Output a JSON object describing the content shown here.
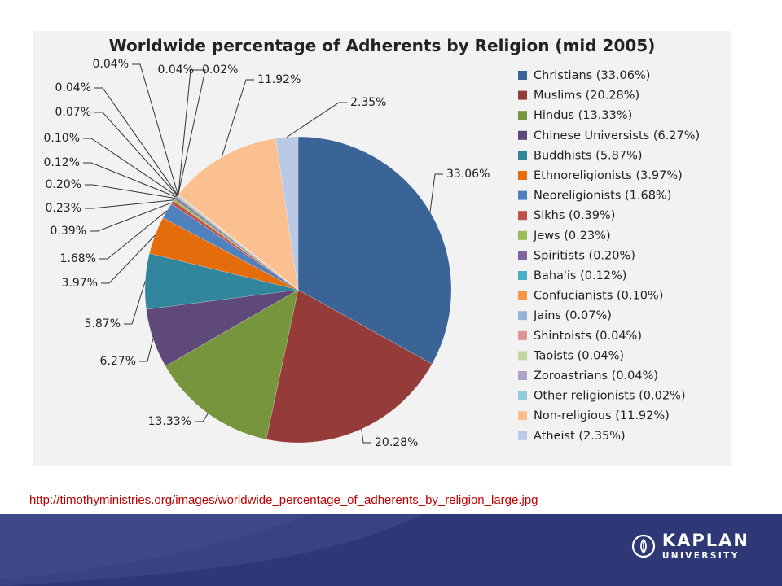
{
  "source_url": "http://timothyministries.org/images/worldwide_percentage_of_adherents_by_religion_large.jpg",
  "logo": {
    "line1": "KAPLAN",
    "line2": "UNIVERSITY"
  },
  "chart_data": {
    "type": "pie",
    "title": "Worldwide percentage of Adherents by Religion (mid 2005)",
    "legend_position": "right",
    "slices": [
      {
        "label": "Christians",
        "legend": "Christians (33.06%)",
        "value": 33.06,
        "data_label": "33.06%",
        "color": "#3a6496"
      },
      {
        "label": "Muslims",
        "legend": "Muslims (20.28%)",
        "value": 20.28,
        "data_label": "20.28%",
        "color": "#953b39"
      },
      {
        "label": "Hindus",
        "legend": "Hindus (13.33%)",
        "value": 13.33,
        "data_label": "13.33%",
        "color": "#77953d"
      },
      {
        "label": "Chinese Universists",
        "legend": "Chinese Universists (6.27%)",
        "value": 6.27,
        "data_label": "6.27%",
        "color": "#5f497a"
      },
      {
        "label": "Buddhists",
        "legend": "Buddhists (5.87%)",
        "value": 5.87,
        "data_label": "5.87%",
        "color": "#31859c"
      },
      {
        "label": "Ethnoreligionists",
        "legend": "Ethnoreligionists (3.97%)",
        "value": 3.97,
        "data_label": "3.97%",
        "color": "#e46c0a"
      },
      {
        "label": "Neoreligionists",
        "legend": "Neoreligionists (1.68%)",
        "value": 1.68,
        "data_label": "1.68%",
        "color": "#4f81bd"
      },
      {
        "label": "Sikhs",
        "legend": "Sikhs (0.39%)",
        "value": 0.39,
        "data_label": "0.39%",
        "color": "#c0504d"
      },
      {
        "label": "Jews",
        "legend": "Jews (0.23%)",
        "value": 0.23,
        "data_label": "0.23%",
        "color": "#9bbb59"
      },
      {
        "label": "Spiritists",
        "legend": "Spiritists (0.20%)",
        "value": 0.2,
        "data_label": "0.20%",
        "color": "#8064a2"
      },
      {
        "label": "Baha'is",
        "legend": "Baha'is (0.12%)",
        "value": 0.12,
        "data_label": "0.12%",
        "color": "#4bacc6"
      },
      {
        "label": "Confucianists",
        "legend": "Confucianists (0.10%)",
        "value": 0.1,
        "data_label": "0.10%",
        "color": "#f79646"
      },
      {
        "label": "Jains",
        "legend": "Jains (0.07%)",
        "value": 0.07,
        "data_label": "0.07%",
        "color": "#95b3d7"
      },
      {
        "label": "Shintoists",
        "legend": "Shintoists (0.04%)",
        "value": 0.04,
        "data_label": "0.04%",
        "color": "#d99694"
      },
      {
        "label": "Taoists",
        "legend": "Taoists (0.04%)",
        "value": 0.04,
        "data_label": "0.04%",
        "color": "#c3d69b"
      },
      {
        "label": "Zoroastrians",
        "legend": "Zoroastrians (0.04%)",
        "value": 0.04,
        "data_label": "0.04%",
        "color": "#b2a2c7"
      },
      {
        "label": "Other religionists",
        "legend": "Other religionists (0.02%)",
        "value": 0.02,
        "data_label": "0.02%",
        "color": "#93cddd"
      },
      {
        "label": "Non-religious",
        "legend": "Non-religious (11.92%)",
        "value": 11.92,
        "data_label": "11.92%",
        "color": "#fac090"
      },
      {
        "label": "Atheist",
        "legend": "Atheist (2.35%)",
        "value": 2.35,
        "data_label": "2.35%",
        "color": "#b9c9e6"
      }
    ]
  }
}
